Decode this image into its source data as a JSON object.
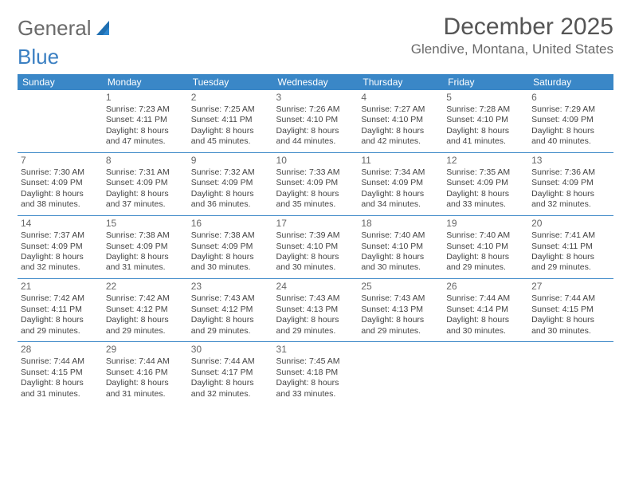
{
  "brand": {
    "part1": "General",
    "part2": "Blue"
  },
  "title": "December 2025",
  "location": "Glendive, Montana, United States",
  "colors": {
    "header_bg": "#3a87c7",
    "header_text": "#ffffff",
    "rule": "#3a87c7",
    "page_bg": "#ffffff",
    "text": "#444444",
    "daynum": "#666666",
    "title_color": "#555555",
    "logo_gray": "#6a6a6a",
    "logo_blue": "#3a7fc2"
  },
  "dow": [
    "Sunday",
    "Monday",
    "Tuesday",
    "Wednesday",
    "Thursday",
    "Friday",
    "Saturday"
  ],
  "weeks": [
    [
      null,
      {
        "n": "1",
        "sr": "Sunrise: 7:23 AM",
        "ss": "Sunset: 4:11 PM",
        "d1": "Daylight: 8 hours",
        "d2": "and 47 minutes."
      },
      {
        "n": "2",
        "sr": "Sunrise: 7:25 AM",
        "ss": "Sunset: 4:11 PM",
        "d1": "Daylight: 8 hours",
        "d2": "and 45 minutes."
      },
      {
        "n": "3",
        "sr": "Sunrise: 7:26 AM",
        "ss": "Sunset: 4:10 PM",
        "d1": "Daylight: 8 hours",
        "d2": "and 44 minutes."
      },
      {
        "n": "4",
        "sr": "Sunrise: 7:27 AM",
        "ss": "Sunset: 4:10 PM",
        "d1": "Daylight: 8 hours",
        "d2": "and 42 minutes."
      },
      {
        "n": "5",
        "sr": "Sunrise: 7:28 AM",
        "ss": "Sunset: 4:10 PM",
        "d1": "Daylight: 8 hours",
        "d2": "and 41 minutes."
      },
      {
        "n": "6",
        "sr": "Sunrise: 7:29 AM",
        "ss": "Sunset: 4:09 PM",
        "d1": "Daylight: 8 hours",
        "d2": "and 40 minutes."
      }
    ],
    [
      {
        "n": "7",
        "sr": "Sunrise: 7:30 AM",
        "ss": "Sunset: 4:09 PM",
        "d1": "Daylight: 8 hours",
        "d2": "and 38 minutes."
      },
      {
        "n": "8",
        "sr": "Sunrise: 7:31 AM",
        "ss": "Sunset: 4:09 PM",
        "d1": "Daylight: 8 hours",
        "d2": "and 37 minutes."
      },
      {
        "n": "9",
        "sr": "Sunrise: 7:32 AM",
        "ss": "Sunset: 4:09 PM",
        "d1": "Daylight: 8 hours",
        "d2": "and 36 minutes."
      },
      {
        "n": "10",
        "sr": "Sunrise: 7:33 AM",
        "ss": "Sunset: 4:09 PM",
        "d1": "Daylight: 8 hours",
        "d2": "and 35 minutes."
      },
      {
        "n": "11",
        "sr": "Sunrise: 7:34 AM",
        "ss": "Sunset: 4:09 PM",
        "d1": "Daylight: 8 hours",
        "d2": "and 34 minutes."
      },
      {
        "n": "12",
        "sr": "Sunrise: 7:35 AM",
        "ss": "Sunset: 4:09 PM",
        "d1": "Daylight: 8 hours",
        "d2": "and 33 minutes."
      },
      {
        "n": "13",
        "sr": "Sunrise: 7:36 AM",
        "ss": "Sunset: 4:09 PM",
        "d1": "Daylight: 8 hours",
        "d2": "and 32 minutes."
      }
    ],
    [
      {
        "n": "14",
        "sr": "Sunrise: 7:37 AM",
        "ss": "Sunset: 4:09 PM",
        "d1": "Daylight: 8 hours",
        "d2": "and 32 minutes."
      },
      {
        "n": "15",
        "sr": "Sunrise: 7:38 AM",
        "ss": "Sunset: 4:09 PM",
        "d1": "Daylight: 8 hours",
        "d2": "and 31 minutes."
      },
      {
        "n": "16",
        "sr": "Sunrise: 7:38 AM",
        "ss": "Sunset: 4:09 PM",
        "d1": "Daylight: 8 hours",
        "d2": "and 30 minutes."
      },
      {
        "n": "17",
        "sr": "Sunrise: 7:39 AM",
        "ss": "Sunset: 4:10 PM",
        "d1": "Daylight: 8 hours",
        "d2": "and 30 minutes."
      },
      {
        "n": "18",
        "sr": "Sunrise: 7:40 AM",
        "ss": "Sunset: 4:10 PM",
        "d1": "Daylight: 8 hours",
        "d2": "and 30 minutes."
      },
      {
        "n": "19",
        "sr": "Sunrise: 7:40 AM",
        "ss": "Sunset: 4:10 PM",
        "d1": "Daylight: 8 hours",
        "d2": "and 29 minutes."
      },
      {
        "n": "20",
        "sr": "Sunrise: 7:41 AM",
        "ss": "Sunset: 4:11 PM",
        "d1": "Daylight: 8 hours",
        "d2": "and 29 minutes."
      }
    ],
    [
      {
        "n": "21",
        "sr": "Sunrise: 7:42 AM",
        "ss": "Sunset: 4:11 PM",
        "d1": "Daylight: 8 hours",
        "d2": "and 29 minutes."
      },
      {
        "n": "22",
        "sr": "Sunrise: 7:42 AM",
        "ss": "Sunset: 4:12 PM",
        "d1": "Daylight: 8 hours",
        "d2": "and 29 minutes."
      },
      {
        "n": "23",
        "sr": "Sunrise: 7:43 AM",
        "ss": "Sunset: 4:12 PM",
        "d1": "Daylight: 8 hours",
        "d2": "and 29 minutes."
      },
      {
        "n": "24",
        "sr": "Sunrise: 7:43 AM",
        "ss": "Sunset: 4:13 PM",
        "d1": "Daylight: 8 hours",
        "d2": "and 29 minutes."
      },
      {
        "n": "25",
        "sr": "Sunrise: 7:43 AM",
        "ss": "Sunset: 4:13 PM",
        "d1": "Daylight: 8 hours",
        "d2": "and 29 minutes."
      },
      {
        "n": "26",
        "sr": "Sunrise: 7:44 AM",
        "ss": "Sunset: 4:14 PM",
        "d1": "Daylight: 8 hours",
        "d2": "and 30 minutes."
      },
      {
        "n": "27",
        "sr": "Sunrise: 7:44 AM",
        "ss": "Sunset: 4:15 PM",
        "d1": "Daylight: 8 hours",
        "d2": "and 30 minutes."
      }
    ],
    [
      {
        "n": "28",
        "sr": "Sunrise: 7:44 AM",
        "ss": "Sunset: 4:15 PM",
        "d1": "Daylight: 8 hours",
        "d2": "and 31 minutes."
      },
      {
        "n": "29",
        "sr": "Sunrise: 7:44 AM",
        "ss": "Sunset: 4:16 PM",
        "d1": "Daylight: 8 hours",
        "d2": "and 31 minutes."
      },
      {
        "n": "30",
        "sr": "Sunrise: 7:44 AM",
        "ss": "Sunset: 4:17 PM",
        "d1": "Daylight: 8 hours",
        "d2": "and 32 minutes."
      },
      {
        "n": "31",
        "sr": "Sunrise: 7:45 AM",
        "ss": "Sunset: 4:18 PM",
        "d1": "Daylight: 8 hours",
        "d2": "and 33 minutes."
      },
      null,
      null,
      null
    ]
  ]
}
